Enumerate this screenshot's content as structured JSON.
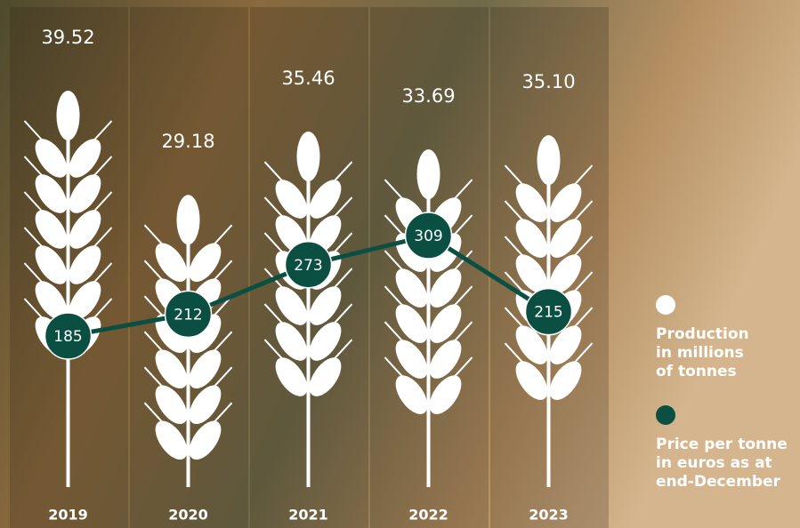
{
  "chart_data": {
    "type": "pictogram-line",
    "categories": [
      "2019",
      "2020",
      "2021",
      "2022",
      "2023"
    ],
    "series": [
      {
        "name": "Production in millions of tonnes",
        "color": "#ffffff",
        "values": [
          39.52,
          29.18,
          35.46,
          33.69,
          35.1
        ],
        "value_labels": [
          "39.52",
          "29.18",
          "35.46",
          "33.69",
          "35.10"
        ]
      },
      {
        "name": "Price per tonne in euros as at end-December",
        "color": "#0b4f42",
        "values": [
          185,
          212,
          273,
          309,
          215
        ]
      }
    ]
  }
}
